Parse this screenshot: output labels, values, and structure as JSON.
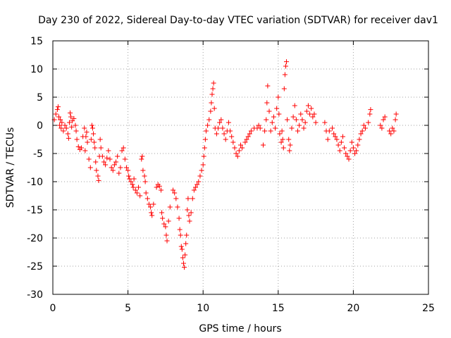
{
  "chart_data": {
    "type": "scatter",
    "title": "Day 230 of 2022, Sidereal Day-to-day VTEC variation (SDTVAR) for receiver dav1",
    "xlabel": "GPS time / hours",
    "ylabel": "SDTVAR / TECUs",
    "xlim": [
      0,
      25
    ],
    "ylim": [
      -30,
      15
    ],
    "x_ticks": [
      0,
      5,
      10,
      15,
      20,
      25
    ],
    "x_tick_labels": [
      "0",
      "5",
      "10",
      "15",
      "20",
      "25"
    ],
    "y_ticks": [
      -30,
      -25,
      -20,
      -15,
      -10,
      -5,
      0,
      5,
      10,
      15
    ],
    "y_tick_labels": [
      "-30",
      "-25",
      "-20",
      "-15",
      "-10",
      "-5",
      "0",
      "5",
      "10",
      "15"
    ],
    "grid": true,
    "marker": "+",
    "marker_color": "#ff0000",
    "series": [
      {
        "name": "SDTVAR",
        "points": [
          [
            0.1,
            1.0
          ],
          [
            0.2,
            2.0
          ],
          [
            0.3,
            2.8
          ],
          [
            0.35,
            3.3
          ],
          [
            0.4,
            1.5
          ],
          [
            0.45,
            0.0
          ],
          [
            0.5,
            1.0
          ],
          [
            0.55,
            -0.5
          ],
          [
            0.6,
            0.5
          ],
          [
            0.7,
            -1.0
          ],
          [
            0.8,
            0.0
          ],
          [
            0.9,
            -0.5
          ],
          [
            1.0,
            -1.5
          ],
          [
            1.05,
            -2.3
          ],
          [
            1.1,
            0.5
          ],
          [
            1.15,
            2.2
          ],
          [
            1.2,
            1.5
          ],
          [
            1.25,
            -0.3
          ],
          [
            1.3,
            0.8
          ],
          [
            1.4,
            1.2
          ],
          [
            1.5,
            0.0
          ],
          [
            1.55,
            -1.0
          ],
          [
            1.6,
            -2.5
          ],
          [
            1.7,
            -3.8
          ],
          [
            1.8,
            -4.3
          ],
          [
            1.9,
            -4.0
          ],
          [
            2.0,
            -2.0
          ],
          [
            2.1,
            -0.5
          ],
          [
            2.15,
            -4.5
          ],
          [
            2.2,
            -2.0
          ],
          [
            2.25,
            -1.2
          ],
          [
            2.3,
            -3.0
          ],
          [
            2.4,
            -6.0
          ],
          [
            2.5,
            -7.5
          ],
          [
            2.55,
            -2.5
          ],
          [
            2.6,
            0.0
          ],
          [
            2.65,
            -0.5
          ],
          [
            2.7,
            -1.5
          ],
          [
            2.75,
            -3.0
          ],
          [
            2.8,
            -4.0
          ],
          [
            2.85,
            -6.5
          ],
          [
            2.9,
            -8.0
          ],
          [
            3.0,
            -9.0
          ],
          [
            3.05,
            -9.8
          ],
          [
            3.1,
            -5.5
          ],
          [
            3.15,
            -2.5
          ],
          [
            3.2,
            -4.0
          ],
          [
            3.3,
            -5.5
          ],
          [
            3.4,
            -6.5
          ],
          [
            3.5,
            -7.0
          ],
          [
            3.6,
            -5.8
          ],
          [
            3.7,
            -4.5
          ],
          [
            3.8,
            -6.0
          ],
          [
            3.9,
            -7.5
          ],
          [
            4.0,
            -8.0
          ],
          [
            4.1,
            -7.0
          ],
          [
            4.2,
            -6.5
          ],
          [
            4.3,
            -5.5
          ],
          [
            4.4,
            -8.5
          ],
          [
            4.5,
            -7.5
          ],
          [
            4.6,
            -4.5
          ],
          [
            4.7,
            -4.0
          ],
          [
            4.8,
            -6.0
          ],
          [
            4.9,
            -7.5
          ],
          [
            5.0,
            -8.0
          ],
          [
            5.05,
            -9.0
          ],
          [
            5.1,
            -9.5
          ],
          [
            5.2,
            -10.0
          ],
          [
            5.3,
            -10.5
          ],
          [
            5.35,
            -11.0
          ],
          [
            5.4,
            -9.5
          ],
          [
            5.5,
            -11.5
          ],
          [
            5.6,
            -12.0
          ],
          [
            5.7,
            -11.0
          ],
          [
            5.8,
            -12.5
          ],
          [
            5.9,
            -6.0
          ],
          [
            5.95,
            -5.5
          ],
          [
            6.0,
            -8.0
          ],
          [
            6.1,
            -9.0
          ],
          [
            6.15,
            -10.0
          ],
          [
            6.2,
            -12.0
          ],
          [
            6.3,
            -13.0
          ],
          [
            6.4,
            -14.0
          ],
          [
            6.5,
            -14.5
          ],
          [
            6.55,
            -15.5
          ],
          [
            6.6,
            -16.0
          ],
          [
            6.7,
            -14.0
          ],
          [
            6.9,
            -11.0
          ],
          [
            7.0,
            -10.5
          ],
          [
            7.1,
            -10.8
          ],
          [
            7.2,
            -11.5
          ],
          [
            7.25,
            -15.5
          ],
          [
            7.3,
            -16.5
          ],
          [
            7.4,
            -17.5
          ],
          [
            7.5,
            -18.0
          ],
          [
            7.55,
            -19.5
          ],
          [
            7.6,
            -20.5
          ],
          [
            7.7,
            -17.0
          ],
          [
            7.8,
            -14.5
          ],
          [
            8.0,
            -11.5
          ],
          [
            8.1,
            -12.0
          ],
          [
            8.2,
            -13.0
          ],
          [
            8.3,
            -14.5
          ],
          [
            8.4,
            -16.5
          ],
          [
            8.45,
            -18.5
          ],
          [
            8.5,
            -19.5
          ],
          [
            8.55,
            -21.5
          ],
          [
            8.6,
            -22.0
          ],
          [
            8.65,
            -23.5
          ],
          [
            8.7,
            -24.5
          ],
          [
            8.75,
            -25.2
          ],
          [
            8.8,
            -23.0
          ],
          [
            8.85,
            -21.0
          ],
          [
            8.9,
            -19.5
          ],
          [
            8.95,
            -15.0
          ],
          [
            9.0,
            -13.0
          ],
          [
            9.05,
            -16.0
          ],
          [
            9.1,
            -17.0
          ],
          [
            9.2,
            -15.5
          ],
          [
            9.3,
            -13.0
          ],
          [
            9.4,
            -11.5
          ],
          [
            9.5,
            -11.0
          ],
          [
            9.6,
            -10.5
          ],
          [
            9.7,
            -10.0
          ],
          [
            9.8,
            -9.0
          ],
          [
            9.9,
            -8.0
          ],
          [
            10.0,
            -7.0
          ],
          [
            10.05,
            -5.5
          ],
          [
            10.1,
            -4.0
          ],
          [
            10.15,
            -2.5
          ],
          [
            10.2,
            -1.0
          ],
          [
            10.3,
            0.0
          ],
          [
            10.4,
            1.0
          ],
          [
            10.5,
            2.5
          ],
          [
            10.55,
            4.0
          ],
          [
            10.6,
            5.5
          ],
          [
            10.65,
            6.5
          ],
          [
            10.7,
            7.5
          ],
          [
            10.75,
            3.0
          ],
          [
            10.8,
            -0.5
          ],
          [
            10.9,
            -1.5
          ],
          [
            11.0,
            -0.5
          ],
          [
            11.1,
            0.5
          ],
          [
            11.2,
            1.0
          ],
          [
            11.3,
            -0.5
          ],
          [
            11.4,
            -1.5
          ],
          [
            11.5,
            -2.5
          ],
          [
            11.6,
            -1.0
          ],
          [
            11.7,
            0.5
          ],
          [
            11.8,
            -1.0
          ],
          [
            11.9,
            -2.0
          ],
          [
            12.0,
            -3.0
          ],
          [
            12.1,
            -4.0
          ],
          [
            12.2,
            -5.0
          ],
          [
            12.3,
            -5.5
          ],
          [
            12.4,
            -4.5
          ],
          [
            12.5,
            -3.5
          ],
          [
            12.6,
            -4.0
          ],
          [
            12.8,
            -3.0
          ],
          [
            12.9,
            -2.5
          ],
          [
            13.0,
            -2.0
          ],
          [
            13.1,
            -1.5
          ],
          [
            13.2,
            -1.0
          ],
          [
            13.4,
            -0.5
          ],
          [
            13.6,
            -0.5
          ],
          [
            13.7,
            0.0
          ],
          [
            13.8,
            -0.5
          ],
          [
            14.0,
            -3.5
          ],
          [
            14.1,
            -1.0
          ],
          [
            14.2,
            1.0
          ],
          [
            14.25,
            4.0
          ],
          [
            14.3,
            7.0
          ],
          [
            14.4,
            2.5
          ],
          [
            14.5,
            -1.0
          ],
          [
            14.6,
            0.5
          ],
          [
            14.7,
            1.5
          ],
          [
            14.8,
            -0.5
          ],
          [
            14.9,
            3.0
          ],
          [
            15.0,
            5.0
          ],
          [
            15.05,
            2.0
          ],
          [
            15.1,
            -1.5
          ],
          [
            15.2,
            -3.0
          ],
          [
            15.25,
            -1.0
          ],
          [
            15.3,
            -2.5
          ],
          [
            15.35,
            -4.0
          ],
          [
            15.4,
            6.5
          ],
          [
            15.45,
            9.0
          ],
          [
            15.5,
            10.5
          ],
          [
            15.55,
            11.3
          ],
          [
            15.6,
            1.0
          ],
          [
            15.7,
            -2.5
          ],
          [
            15.75,
            -4.5
          ],
          [
            15.8,
            -3.5
          ],
          [
            15.9,
            -0.5
          ],
          [
            16.0,
            1.5
          ],
          [
            16.1,
            3.5
          ],
          [
            16.2,
            1.0
          ],
          [
            16.3,
            -1.0
          ],
          [
            16.4,
            0.0
          ],
          [
            16.5,
            2.0
          ],
          [
            16.6,
            1.0
          ],
          [
            16.7,
            -0.5
          ],
          [
            16.8,
            0.5
          ],
          [
            16.9,
            2.5
          ],
          [
            17.0,
            3.5
          ],
          [
            17.1,
            2.0
          ],
          [
            17.2,
            3.0
          ],
          [
            17.3,
            1.5
          ],
          [
            17.4,
            2.0
          ],
          [
            17.5,
            0.5
          ],
          [
            18.1,
            0.5
          ],
          [
            18.2,
            -1.0
          ],
          [
            18.3,
            -2.5
          ],
          [
            18.4,
            -1.0
          ],
          [
            18.6,
            -0.5
          ],
          [
            18.7,
            -1.5
          ],
          [
            18.8,
            -2.0
          ],
          [
            18.9,
            -2.5
          ],
          [
            19.0,
            -3.5
          ],
          [
            19.1,
            -4.5
          ],
          [
            19.2,
            -3.0
          ],
          [
            19.3,
            -2.0
          ],
          [
            19.4,
            -4.0
          ],
          [
            19.5,
            -5.0
          ],
          [
            19.6,
            -5.5
          ],
          [
            19.7,
            -6.0
          ],
          [
            19.8,
            -4.5
          ],
          [
            19.9,
            -3.0
          ],
          [
            20.0,
            -4.0
          ],
          [
            20.1,
            -5.0
          ],
          [
            20.2,
            -4.5
          ],
          [
            20.3,
            -3.5
          ],
          [
            20.4,
            -2.5
          ],
          [
            20.5,
            -1.5
          ],
          [
            20.6,
            -1.0
          ],
          [
            20.7,
            0.0
          ],
          [
            20.8,
            -0.5
          ],
          [
            21.0,
            0.5
          ],
          [
            21.1,
            2.0
          ],
          [
            21.15,
            2.8
          ],
          [
            21.8,
            0.0
          ],
          [
            21.9,
            -0.5
          ],
          [
            22.0,
            1.0
          ],
          [
            22.1,
            1.5
          ],
          [
            22.4,
            -1.0
          ],
          [
            22.5,
            -1.5
          ],
          [
            22.6,
            -0.5
          ],
          [
            22.7,
            -1.0
          ],
          [
            22.8,
            1.0
          ],
          [
            22.85,
            2.0
          ]
        ]
      }
    ]
  }
}
